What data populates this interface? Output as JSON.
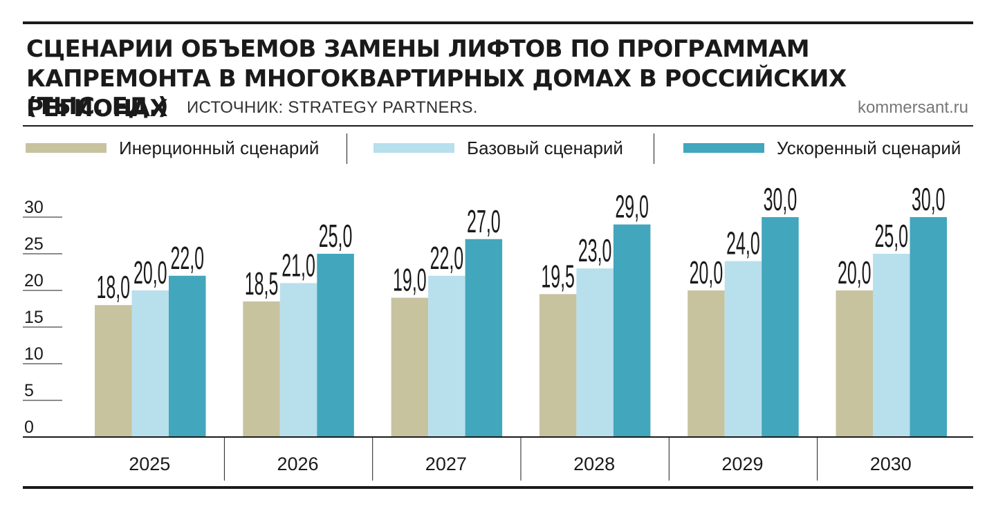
{
  "header": {
    "title": "СЦЕНАРИИ ОБЪЕМОВ ЗАМЕНЫ ЛИФТОВ ПО ПРОГРАММАМ КАПРЕМОНТА В МНОГОКВАРТИРНЫХ ДОМАХ В РОССИЙСКИХ РЕГИОНАХ",
    "unit": "(ТЫС. ЕД.)",
    "source": "ИСТОЧНИК: STRATEGY PARTNERS.",
    "site": "kommersant.ru"
  },
  "colors": {
    "inertial": "#c8c39f",
    "base": "#b8dfec",
    "accelerated": "#42a6bc",
    "text": "#1a1a1a",
    "grid": "#1a1a1a"
  },
  "chart_data": {
    "type": "bar",
    "title": "СЦЕНАРИИ ОБЪЕМОВ ЗАМЕНЫ ЛИФТОВ ПО ПРОГРАММАМ КАПРЕМОНТА В МНОГОКВАРТИРНЫХ ДОМАХ В РОССИЙСКИХ РЕГИОНАХ (ТЫС. ЕД.)",
    "categories": [
      "2025",
      "2026",
      "2027",
      "2028",
      "2029",
      "2030"
    ],
    "series": [
      {
        "name": "Инерционный сценарий",
        "color_key": "inertial",
        "values": [
          18.0,
          18.5,
          19.0,
          19.5,
          20.0,
          20.0
        ],
        "labels": [
          "18,0",
          "18,5",
          "19,0",
          "19,5",
          "20,0",
          "20,0"
        ]
      },
      {
        "name": "Базовый сценарий",
        "color_key": "base",
        "values": [
          20.0,
          21.0,
          22.0,
          23.0,
          24.0,
          25.0
        ],
        "labels": [
          "20,0",
          "21,0",
          "22,0",
          "23,0",
          "24,0",
          "25,0"
        ]
      },
      {
        "name": "Ускоренный сценарий",
        "color_key": "accelerated",
        "values": [
          22.0,
          25.0,
          27.0,
          29.0,
          30.0,
          30.0
        ],
        "labels": [
          "22,0",
          "25,0",
          "27,0",
          "29,0",
          "30,0",
          "30,0"
        ]
      }
    ],
    "y_ticks": [
      "0",
      "5",
      "10",
      "15",
      "20",
      "25",
      "30"
    ],
    "ylim": [
      0,
      30
    ],
    "xlabel": "",
    "ylabel": "",
    "legend_position": "top"
  }
}
